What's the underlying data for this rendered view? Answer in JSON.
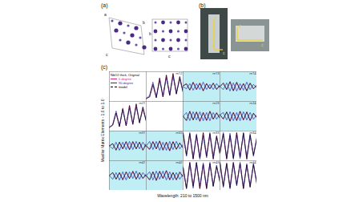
{
  "panels": {
    "a": {
      "label": "(a)",
      "axes": [
        "a",
        "b",
        "c"
      ]
    },
    "b": {
      "label": "(b)",
      "axes": [
        "a",
        "b",
        "c"
      ]
    }
  },
  "chart_data": {
    "type": "line",
    "label": "(c)",
    "legend_title": "NbO2 thick, Original",
    "y_label": "Mueller Matrix Elements - 1.0 to 1.0",
    "x_label": "Wavelength: 210 to 1500 nm",
    "xlim": [
      210,
      1500
    ],
    "ylim": [
      -1,
      1
    ],
    "tick_labels": false,
    "x": [
      210,
      327,
      444,
      562,
      679,
      796,
      914,
      1031,
      1148,
      1265,
      1383,
      1500
    ],
    "series": [
      {
        "name": "0-degree",
        "color": "#e0208c"
      },
      {
        "name": "90-degree",
        "color": "#2a2ab8"
      },
      {
        "name": "model",
        "color": "#000000",
        "line_style": "dashed"
      }
    ],
    "cells": [
      {
        "name": "m12",
        "values": [
          [
            -0.8,
            -0.7,
            0.1,
            -0.75,
            0.6,
            -0.7,
            0.8,
            -0.6,
            0.9,
            -0.5,
            0.7,
            -0.4
          ],
          [
            -0.8,
            -0.6,
            0.3,
            -0.7,
            0.4,
            -0.65,
            0.6,
            -0.55,
            0.7,
            -0.45,
            0.5,
            -0.35
          ],
          [
            -0.8,
            -0.7,
            0.15,
            -0.75,
            0.55,
            -0.7,
            0.75,
            -0.6,
            0.85,
            -0.5,
            0.65,
            -0.4
          ]
        ]
      },
      {
        "name": "m13",
        "values": [
          [
            0.05,
            0.2,
            -0.25,
            0.3,
            -0.2,
            0.25,
            -0.3,
            0.2,
            -0.15,
            0.25,
            -0.2,
            0.1
          ],
          [
            0.0,
            -0.15,
            0.2,
            -0.25,
            0.2,
            -0.2,
            0.3,
            -0.2,
            0.15,
            -0.2,
            0.2,
            -0.1
          ],
          [
            0.05,
            0.18,
            -0.22,
            0.28,
            -0.2,
            0.22,
            -0.28,
            0.2,
            -0.15,
            0.22,
            -0.18,
            0.1
          ]
        ]
      },
      {
        "name": "m14",
        "values": [
          [
            0.0,
            0.25,
            -0.2,
            0.35,
            -0.3,
            0.3,
            -0.25,
            0.2,
            -0.3,
            0.25,
            -0.15,
            0.1
          ],
          [
            0.0,
            -0.2,
            0.25,
            -0.3,
            0.25,
            -0.3,
            0.2,
            -0.25,
            0.3,
            -0.2,
            0.15,
            -0.1
          ],
          [
            0.0,
            0.22,
            -0.2,
            0.32,
            -0.28,
            0.28,
            -0.22,
            0.2,
            -0.28,
            0.22,
            -0.15,
            0.1
          ]
        ]
      },
      {
        "name": "m21",
        "values": [
          [
            -0.75,
            -0.6,
            0.2,
            -0.7,
            0.55,
            -0.65,
            0.75,
            -0.55,
            0.85,
            -0.45,
            0.65,
            -0.35
          ],
          [
            -0.75,
            -0.55,
            0.35,
            -0.65,
            0.45,
            -0.6,
            0.55,
            -0.5,
            0.65,
            -0.4,
            0.45,
            -0.3
          ],
          [
            -0.75,
            -0.6,
            0.22,
            -0.7,
            0.5,
            -0.65,
            0.7,
            -0.55,
            0.8,
            -0.45,
            0.6,
            -0.35
          ]
        ]
      },
      {
        "name": "m23",
        "values": [
          [
            0.0,
            -0.3,
            0.35,
            -0.25,
            0.3,
            -0.35,
            0.25,
            -0.3,
            0.35,
            -0.2,
            0.25,
            -0.15
          ],
          [
            0.0,
            0.25,
            -0.3,
            0.3,
            -0.25,
            0.3,
            -0.3,
            0.25,
            -0.3,
            0.25,
            -0.2,
            0.15
          ],
          [
            0.0,
            -0.28,
            0.32,
            -0.25,
            0.28,
            -0.32,
            0.25,
            -0.28,
            0.32,
            -0.2,
            0.22,
            -0.15
          ]
        ]
      },
      {
        "name": "m24",
        "values": [
          [
            0.1,
            -0.2,
            0.3,
            -0.35,
            0.25,
            -0.3,
            0.35,
            -0.25,
            0.3,
            -0.3,
            0.2,
            -0.1
          ],
          [
            0.1,
            0.25,
            -0.25,
            0.3,
            -0.3,
            0.25,
            -0.3,
            0.3,
            -0.25,
            0.25,
            -0.2,
            0.1
          ],
          [
            0.1,
            -0.18,
            0.28,
            -0.32,
            0.25,
            -0.28,
            0.32,
            -0.25,
            0.28,
            -0.28,
            0.2,
            -0.1
          ]
        ]
      },
      {
        "name": "m31",
        "values": [
          [
            0.0,
            0.15,
            -0.3,
            0.25,
            -0.2,
            0.3,
            -0.25,
            0.3,
            -0.2,
            0.25,
            -0.3,
            0.15
          ],
          [
            0.0,
            -0.2,
            0.25,
            -0.3,
            0.25,
            -0.25,
            0.3,
            -0.25,
            0.3,
            -0.2,
            0.25,
            -0.1
          ],
          [
            0.0,
            0.15,
            -0.28,
            0.25,
            -0.2,
            0.28,
            -0.25,
            0.28,
            -0.2,
            0.25,
            -0.28,
            0.15
          ]
        ]
      },
      {
        "name": "m32",
        "values": [
          [
            0.0,
            -0.25,
            0.3,
            -0.2,
            0.35,
            -0.3,
            0.25,
            -0.35,
            0.3,
            -0.25,
            0.2,
            -0.15
          ],
          [
            0.0,
            0.3,
            -0.25,
            0.3,
            -0.3,
            0.25,
            -0.3,
            0.3,
            -0.25,
            0.3,
            -0.2,
            0.1
          ],
          [
            0.0,
            -0.22,
            0.28,
            -0.2,
            0.32,
            -0.28,
            0.25,
            -0.32,
            0.28,
            -0.22,
            0.2,
            -0.15
          ]
        ]
      },
      {
        "name": "m33",
        "values": [
          [
            0.9,
            -0.6,
            0.8,
            -0.9,
            0.7,
            -0.8,
            0.9,
            -0.7,
            0.8,
            -0.9,
            0.6,
            -0.5
          ],
          [
            0.8,
            -0.7,
            0.9,
            -0.8,
            0.8,
            -0.9,
            0.7,
            -0.8,
            0.9,
            -0.7,
            0.7,
            -0.6
          ],
          [
            0.88,
            -0.62,
            0.82,
            -0.88,
            0.72,
            -0.8,
            0.88,
            -0.7,
            0.8,
            -0.88,
            0.62,
            -0.5
          ]
        ]
      },
      {
        "name": "m34",
        "values": [
          [
            -0.5,
            0.8,
            -0.9,
            0.7,
            -0.8,
            0.9,
            -0.75,
            0.85,
            -0.9,
            0.7,
            -0.6,
            0.5
          ],
          [
            -0.4,
            0.9,
            -0.8,
            0.85,
            -0.9,
            0.75,
            -0.85,
            0.9,
            -0.75,
            0.8,
            -0.7,
            0.6
          ],
          [
            -0.48,
            0.82,
            -0.88,
            0.72,
            -0.82,
            0.88,
            -0.75,
            0.85,
            -0.88,
            0.72,
            -0.62,
            0.5
          ]
        ]
      },
      {
        "name": "m41",
        "values": [
          [
            0.0,
            0.2,
            -0.25,
            0.2,
            -0.3,
            0.25,
            -0.2,
            0.3,
            -0.25,
            0.2,
            -0.2,
            0.1
          ],
          [
            0.0,
            -0.25,
            0.2,
            -0.3,
            0.25,
            -0.3,
            0.25,
            -0.2,
            0.3,
            -0.25,
            0.2,
            -0.1
          ],
          [
            0.0,
            0.2,
            -0.24,
            0.2,
            -0.28,
            0.24,
            -0.2,
            0.28,
            -0.24,
            0.2,
            -0.2,
            0.1
          ]
        ]
      },
      {
        "name": "m42",
        "values": [
          [
            0.0,
            -0.3,
            0.25,
            -0.35,
            0.3,
            -0.2,
            0.35,
            -0.3,
            0.2,
            -0.3,
            0.25,
            -0.1
          ],
          [
            0.0,
            0.25,
            -0.3,
            0.3,
            -0.25,
            0.3,
            -0.3,
            0.25,
            -0.3,
            0.2,
            -0.25,
            0.1
          ],
          [
            0.0,
            -0.28,
            0.25,
            -0.32,
            0.28,
            -0.2,
            0.32,
            -0.28,
            0.2,
            -0.28,
            0.22,
            -0.1
          ]
        ]
      },
      {
        "name": "m43",
        "values": [
          [
            0.5,
            -0.85,
            0.9,
            -0.7,
            0.85,
            -0.9,
            0.75,
            -0.9,
            0.8,
            -0.7,
            0.6,
            -0.4
          ],
          [
            0.6,
            -0.9,
            0.8,
            -0.85,
            0.9,
            -0.75,
            0.85,
            -0.8,
            0.9,
            -0.75,
            0.7,
            -0.5
          ],
          [
            0.52,
            -0.85,
            0.88,
            -0.72,
            0.85,
            -0.88,
            0.75,
            -0.88,
            0.8,
            -0.7,
            0.62,
            -0.4
          ]
        ]
      },
      {
        "name": "m44",
        "values": [
          [
            0.9,
            -0.7,
            0.85,
            -0.8,
            0.9,
            -0.6,
            0.8,
            -0.9,
            0.7,
            -0.8,
            0.75,
            -0.5
          ],
          [
            0.85,
            -0.8,
            0.75,
            -0.9,
            0.8,
            -0.7,
            0.9,
            -0.8,
            0.8,
            -0.7,
            0.8,
            -0.6
          ],
          [
            0.88,
            -0.72,
            0.82,
            -0.82,
            0.88,
            -0.62,
            0.8,
            -0.88,
            0.72,
            -0.78,
            0.75,
            -0.5
          ]
        ]
      }
    ]
  }
}
